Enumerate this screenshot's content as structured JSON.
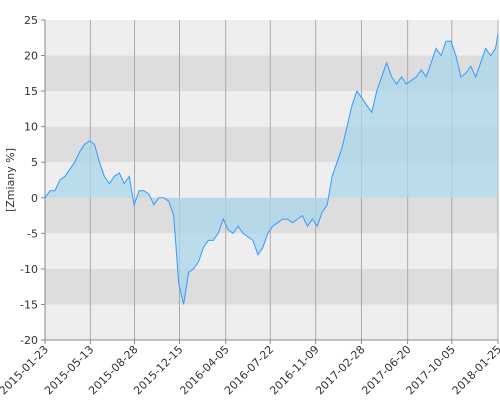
{
  "chart_data": {
    "type": "area",
    "y_label": "[Zmiany %]",
    "x": [
      "2015-01-23",
      "2015-02-04",
      "2015-02-16",
      "2015-02-28",
      "2015-03-12",
      "2015-03-24",
      "2015-04-05",
      "2015-04-17",
      "2015-04-29",
      "2015-05-11",
      "2015-05-23",
      "2015-06-04",
      "2015-06-16",
      "2015-06-28",
      "2015-07-10",
      "2015-07-22",
      "2015-08-03",
      "2015-08-15",
      "2015-08-27",
      "2015-09-08",
      "2015-09-20",
      "2015-10-02",
      "2015-10-14",
      "2015-10-26",
      "2015-11-07",
      "2015-11-19",
      "2015-12-01",
      "2015-12-13",
      "2015-12-25",
      "2016-01-06",
      "2016-01-18",
      "2016-01-30",
      "2016-02-11",
      "2016-02-23",
      "2016-03-06",
      "2016-03-18",
      "2016-03-30",
      "2016-04-11",
      "2016-04-23",
      "2016-05-05",
      "2016-05-17",
      "2016-05-29",
      "2016-06-10",
      "2016-06-22",
      "2016-07-04",
      "2016-07-16",
      "2016-07-28",
      "2016-08-09",
      "2016-08-21",
      "2016-09-02",
      "2016-09-14",
      "2016-09-26",
      "2016-10-08",
      "2016-10-20",
      "2016-11-01",
      "2016-11-13",
      "2016-11-25",
      "2016-12-07",
      "2016-12-19",
      "2016-12-31",
      "2017-01-12",
      "2017-01-24",
      "2017-02-05",
      "2017-02-17",
      "2017-03-01",
      "2017-03-13",
      "2017-03-25",
      "2017-04-06",
      "2017-04-18",
      "2017-04-30",
      "2017-05-12",
      "2017-05-24",
      "2017-06-05",
      "2017-06-17",
      "2017-06-29",
      "2017-07-11",
      "2017-07-23",
      "2017-08-04",
      "2017-08-16",
      "2017-08-28",
      "2017-09-09",
      "2017-09-21",
      "2017-10-03",
      "2017-10-15",
      "2017-10-27",
      "2017-11-08",
      "2017-11-20",
      "2017-12-02",
      "2017-12-14",
      "2017-12-26",
      "2018-01-07",
      "2018-01-19",
      "2018-01-25"
    ],
    "series": [
      {
        "color": "#3399ff",
        "fill": "#a9d6ea",
        "values": [
          0,
          1,
          1,
          2.5,
          3,
          4,
          5,
          6.5,
          7.5,
          8,
          7.5,
          5,
          3,
          2,
          3,
          3.5,
          2,
          3,
          -1,
          1,
          1,
          0.5,
          -1,
          0,
          0,
          -0.5,
          -2.5,
          -12,
          -15,
          -10.5,
          -10,
          -9,
          -7,
          -6,
          -6,
          -5,
          -3,
          -4.5,
          -5,
          -4,
          -5,
          -5.5,
          -6,
          -8,
          -7,
          -5,
          -4,
          -3.5,
          -3,
          -3,
          -3.5,
          -3,
          -2.5,
          -4,
          -3,
          -4,
          -2,
          -1,
          3,
          5,
          7,
          10,
          13,
          15,
          14,
          13,
          12,
          15,
          17,
          19,
          17,
          16,
          17,
          16,
          16.5,
          17,
          18,
          17,
          19,
          21,
          20,
          22,
          22,
          20,
          17,
          17.5,
          18.5,
          17,
          19,
          21,
          20,
          21,
          23
        ]
      }
    ],
    "xlim": [
      "2015-01-23",
      "2018-01-25"
    ],
    "xticks": [
      "2015-01-23",
      "2015-05-13",
      "2015-08-28",
      "2015-12-15",
      "2016-04-05",
      "2016-07-22",
      "2016-11-09",
      "2017-02-28",
      "2017-06-20",
      "2017-10-05",
      "2018-01-25"
    ],
    "ylim": [
      -20,
      25
    ],
    "yticks": [
      -20,
      -15,
      -10,
      -5,
      0,
      5,
      10,
      15,
      20,
      25
    ],
    "band_colors": [
      "#eeeeee",
      "#dddddd"
    ]
  }
}
